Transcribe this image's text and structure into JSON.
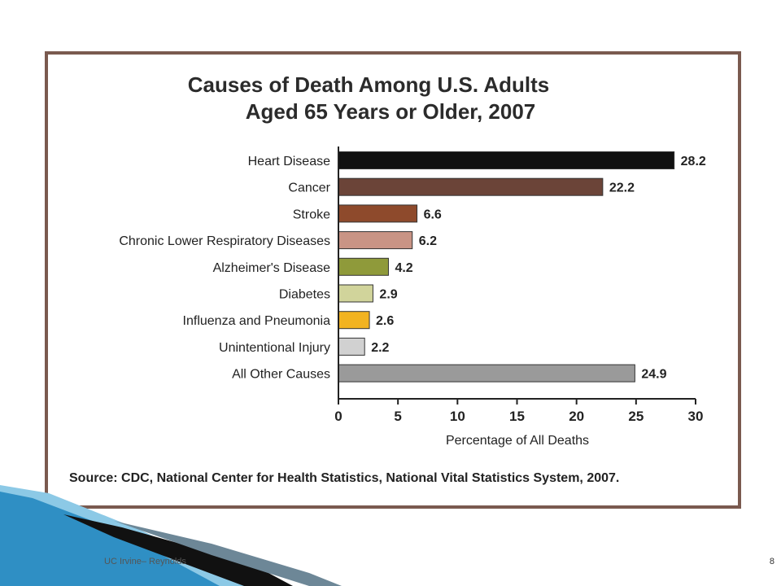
{
  "footer": {
    "org_text": "UC Irvine– Reynolds",
    "page_number": "8"
  },
  "colors": {
    "frame": "#7a5a4f",
    "deco_blue": "#2f8fc4",
    "deco_light": "#8cc9e6",
    "deco_dark": "#111111"
  },
  "chart_data": {
    "type": "bar",
    "orientation": "horizontal",
    "title_lines": [
      "Causes of Death Among U.S. Adults",
      "Aged 65 Years or Older, 2007"
    ],
    "categories": [
      "Heart Disease",
      "Cancer",
      "Stroke",
      "Chronic Lower Respiratory Diseases",
      "Alzheimer's Disease",
      "Diabetes",
      "Influenza and Pneumonia",
      "Unintentional Injury",
      "All Other Causes"
    ],
    "values": [
      28.2,
      22.2,
      6.6,
      6.2,
      4.2,
      2.9,
      2.6,
      2.2,
      24.9
    ],
    "value_labels": [
      "28.2",
      "22.2",
      "6.6",
      "6.2",
      "4.2",
      "2.9",
      "2.6",
      "2.2",
      "24.9"
    ],
    "bar_colors": [
      "#111111",
      "#6b4438",
      "#8e4a2c",
      "#c99485",
      "#8f9a3a",
      "#d1d49b",
      "#f2b320",
      "#d1d1d1",
      "#9a9a9a"
    ],
    "xlabel": "Percentage of All Deaths",
    "ylabel": "",
    "xlim": [
      0,
      30
    ],
    "xticks": [
      0,
      5,
      10,
      15,
      20,
      25,
      30
    ],
    "grid": false,
    "source": "Source: CDC, National Center for Health Statistics, National Vital Statistics System, 2007."
  }
}
